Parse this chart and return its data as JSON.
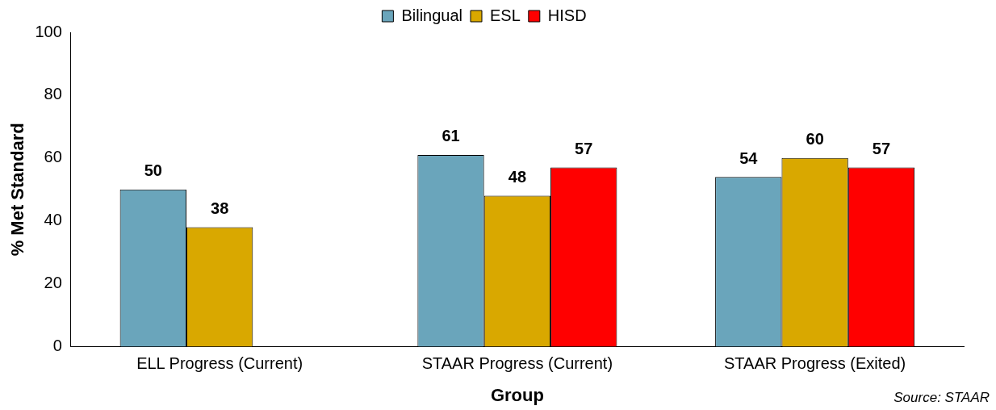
{
  "chart_data": {
    "type": "bar",
    "xlabel": "Group",
    "ylabel": "% Met Standard",
    "categories": [
      "ELL Progress (Current)",
      "STAAR Progress (Current)",
      "STAAR Progress (Exited)"
    ],
    "series": [
      {
        "name": "Bilingual",
        "color": "#6aa5bb",
        "values": [
          50,
          61,
          54
        ]
      },
      {
        "name": "ESL",
        "color": "#d9a800",
        "values": [
          38,
          48,
          60
        ]
      },
      {
        "name": "HISD",
        "color": "#ff0000",
        "values": [
          null,
          57,
          57
        ]
      }
    ],
    "ylim": [
      0,
      100
    ],
    "yticks": [
      0,
      20,
      40,
      60,
      80,
      100
    ],
    "grid": false,
    "legend": "top",
    "data_labels": true,
    "annotations": [
      "Source: STAAR"
    ]
  }
}
